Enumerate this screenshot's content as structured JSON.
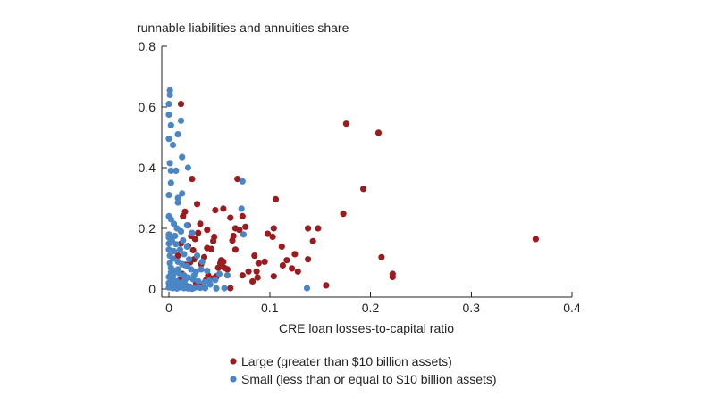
{
  "chart_data": {
    "type": "scatter",
    "title": "",
    "ylabel": "runnable liabilities and annuities share",
    "xlabel": "CRE loan losses-to-capital ratio",
    "xlim": [
      0,
      0.4
    ],
    "ylim": [
      0,
      0.8
    ],
    "xticks": [
      0,
      0.1,
      0.2,
      0.3,
      0.4
    ],
    "xtick_labels": [
      "0",
      "0.1",
      "0.2",
      "0.3",
      "0.4"
    ],
    "yticks": [
      0,
      0.2,
      0.4,
      0.6,
      0.8
    ],
    "ytick_labels": [
      "0",
      "0.2",
      "0.4",
      "0.6",
      "0.8"
    ],
    "grid": false,
    "legend_position": "bottom",
    "series": [
      {
        "name": "Large (greater than $10 billion assets)",
        "color": "#9b1c1f",
        "points": [
          [
            0.012,
            0.61
          ],
          [
            0.176,
            0.545
          ],
          [
            0.208,
            0.515
          ],
          [
            0.193,
            0.33
          ],
          [
            0.364,
            0.165
          ],
          [
            0.173,
            0.248
          ],
          [
            0.106,
            0.296
          ],
          [
            0.068,
            0.363
          ],
          [
            0.023,
            0.363
          ],
          [
            0.054,
            0.265
          ],
          [
            0.046,
            0.26
          ],
          [
            0.028,
            0.28
          ],
          [
            0.016,
            0.255
          ],
          [
            0.014,
            0.24
          ],
          [
            0.019,
            0.21
          ],
          [
            0.031,
            0.215
          ],
          [
            0.038,
            0.195
          ],
          [
            0.044,
            0.158
          ],
          [
            0.061,
            0.235
          ],
          [
            0.064,
            0.175
          ],
          [
            0.066,
            0.2
          ],
          [
            0.07,
            0.195
          ],
          [
            0.073,
            0.24
          ],
          [
            0.076,
            0.205
          ],
          [
            0.098,
            0.182
          ],
          [
            0.104,
            0.2
          ],
          [
            0.103,
            0.172
          ],
          [
            0.112,
            0.14
          ],
          [
            0.125,
            0.115
          ],
          [
            0.138,
            0.2
          ],
          [
            0.148,
            0.2
          ],
          [
            0.143,
            0.158
          ],
          [
            0.138,
            0.098
          ],
          [
            0.211,
            0.105
          ],
          [
            0.222,
            0.05
          ],
          [
            0.222,
            0.04
          ],
          [
            0.156,
            0.012
          ],
          [
            0.128,
            0.058
          ],
          [
            0.122,
            0.068
          ],
          [
            0.113,
            0.078
          ],
          [
            0.104,
            0.042
          ],
          [
            0.089,
            0.085
          ],
          [
            0.087,
            0.058
          ],
          [
            0.088,
            0.038
          ],
          [
            0.083,
            0.025
          ],
          [
            0.079,
            0.058
          ],
          [
            0.073,
            0.045
          ],
          [
            0.066,
            0.13
          ],
          [
            0.063,
            0.16
          ],
          [
            0.058,
            0.065
          ],
          [
            0.054,
            0.09
          ],
          [
            0.051,
            0.085
          ],
          [
            0.049,
            0.07
          ],
          [
            0.047,
            0.04
          ],
          [
            0.044,
            0.035
          ],
          [
            0.042,
            0.132
          ],
          [
            0.038,
            0.135
          ],
          [
            0.035,
            0.105
          ],
          [
            0.032,
            0.082
          ],
          [
            0.029,
            0.185
          ],
          [
            0.026,
            0.165
          ],
          [
            0.024,
            0.128
          ],
          [
            0.022,
            0.175
          ],
          [
            0.019,
            0.142
          ],
          [
            0.016,
            0.08
          ],
          [
            0.013,
            0.05
          ],
          [
            0.011,
            0.03
          ],
          [
            0.027,
            0.02
          ],
          [
            0.031,
            0.008
          ],
          [
            0.034,
            0.012
          ],
          [
            0.037,
            0.03
          ],
          [
            0.052,
            0.095
          ],
          [
            0.055,
            0.07
          ],
          [
            0.047,
            0.042
          ],
          [
            0.039,
            0.045
          ],
          [
            0.061,
            0.003
          ],
          [
            0.012,
            0.15
          ],
          [
            0.045,
            0.172
          ],
          [
            0.025,
            0.098
          ],
          [
            0.009,
            0.11
          ],
          [
            0.021,
            0.088
          ],
          [
            0.095,
            0.09
          ],
          [
            0.117,
            0.095
          ],
          [
            0.085,
            0.11
          ]
        ]
      },
      {
        "name": "Small (less than or equal to $10 billion assets)",
        "color": "#4a86c5",
        "points": [
          [
            0.001,
            0.655
          ],
          [
            0.001,
            0.64
          ],
          [
            0.0,
            0.61
          ],
          [
            0.0,
            0.575
          ],
          [
            0.009,
            0.51
          ],
          [
            0.002,
            0.54
          ],
          [
            0.012,
            0.555
          ],
          [
            0.0,
            0.495
          ],
          [
            0.004,
            0.475
          ],
          [
            0.013,
            0.435
          ],
          [
            0.001,
            0.415
          ],
          [
            0.002,
            0.39
          ],
          [
            0.007,
            0.39
          ],
          [
            0.019,
            0.4
          ],
          [
            0.002,
            0.35
          ],
          [
            0.0,
            0.31
          ],
          [
            0.013,
            0.315
          ],
          [
            0.009,
            0.3
          ],
          [
            0.009,
            0.285
          ],
          [
            0.073,
            0.355
          ],
          [
            0.072,
            0.265
          ],
          [
            0.074,
            0.18
          ],
          [
            0.0,
            0.24
          ],
          [
            0.002,
            0.23
          ],
          [
            0.005,
            0.215
          ],
          [
            0.008,
            0.2
          ],
          [
            0.012,
            0.19
          ],
          [
            0.018,
            0.21
          ],
          [
            0.023,
            0.185
          ],
          [
            0.0,
            0.17
          ],
          [
            0.003,
            0.16
          ],
          [
            0.007,
            0.148
          ],
          [
            0.011,
            0.13
          ],
          [
            0.015,
            0.115
          ],
          [
            0.02,
            0.098
          ],
          [
            0.001,
            0.11
          ],
          [
            0.004,
            0.1
          ],
          [
            0.009,
            0.09
          ],
          [
            0.013,
            0.082
          ],
          [
            0.018,
            0.075
          ],
          [
            0.022,
            0.065
          ],
          [
            0.027,
            0.058
          ],
          [
            0.032,
            0.065
          ],
          [
            0.002,
            0.07
          ],
          [
            0.006,
            0.06
          ],
          [
            0.01,
            0.052
          ],
          [
            0.015,
            0.045
          ],
          [
            0.019,
            0.038
          ],
          [
            0.024,
            0.032
          ],
          [
            0.029,
            0.026
          ],
          [
            0.035,
            0.022
          ],
          [
            0.04,
            0.028
          ],
          [
            0.046,
            0.03
          ],
          [
            0.0,
            0.04
          ],
          [
            0.004,
            0.033
          ],
          [
            0.008,
            0.025
          ],
          [
            0.012,
            0.018
          ],
          [
            0.017,
            0.012
          ],
          [
            0.021,
            0.008
          ],
          [
            0.026,
            0.005
          ],
          [
            0.031,
            0.004
          ],
          [
            0.036,
            0.003
          ],
          [
            0.0,
            0.02
          ],
          [
            0.003,
            0.014
          ],
          [
            0.007,
            0.01
          ],
          [
            0.011,
            0.006
          ],
          [
            0.015,
            0.003
          ],
          [
            0.019,
            0.002
          ],
          [
            0.023,
            0.001
          ],
          [
            0.0,
            0.005
          ],
          [
            0.004,
            0.003
          ],
          [
            0.008,
            0.002
          ],
          [
            0.047,
            0.002
          ],
          [
            0.055,
            0.003
          ],
          [
            0.137,
            0.003
          ],
          [
            0.0,
            0.13
          ],
          [
            0.001,
            0.085
          ],
          [
            0.002,
            0.055
          ],
          [
            0.005,
            0.125
          ],
          [
            0.014,
            0.16
          ],
          [
            0.018,
            0.14
          ],
          [
            0.028,
            0.11
          ],
          [
            0.033,
            0.09
          ],
          [
            0.05,
            0.05
          ],
          [
            0.058,
            0.045
          ],
          [
            0.038,
            0.06
          ],
          [
            0.0,
            0.18
          ],
          [
            0.006,
            0.175
          ],
          [
            0.0,
            0.15
          ],
          [
            0.025,
            0.045
          ],
          [
            0.013,
            0.02
          ],
          [
            0.041,
            0.015
          ],
          [
            0.009,
            0.065
          ],
          [
            0.016,
            0.03
          ],
          [
            0.004,
            0.045
          ]
        ]
      }
    ]
  }
}
